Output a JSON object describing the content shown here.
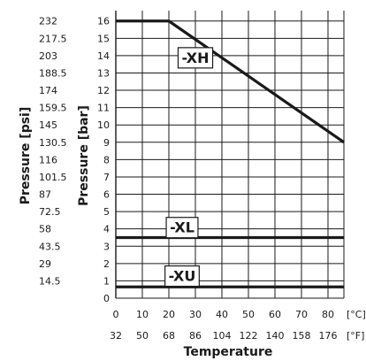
{
  "chart_data": {
    "type": "line",
    "xlabel": "Temperature",
    "ylabel_left": "Pressure [psi]",
    "ylabel_right": "Pressure [bar]",
    "x_unit_c": "[°C]",
    "x_unit_f": "[°F]",
    "xlim": [
      0,
      86
    ],
    "ylim": [
      0,
      16.6
    ],
    "x_ticks_c": [
      "0",
      "10",
      "20",
      "30",
      "40",
      "50",
      "60",
      "70",
      "80"
    ],
    "x_ticks_f": [
      "32",
      "50",
      "68",
      "86",
      "104",
      "122",
      "140",
      "158",
      "176"
    ],
    "y_ticks_bar": [
      "0",
      "1",
      "2",
      "3",
      "4",
      "5",
      "6",
      "7",
      "8",
      "9",
      "10",
      "11",
      "12",
      "13",
      "14",
      "15",
      "16"
    ],
    "y_ticks_psi": [
      {
        "bar": 1,
        "label": "14.5"
      },
      {
        "bar": 2,
        "label": "29"
      },
      {
        "bar": 3,
        "label": "43.5"
      },
      {
        "bar": 4,
        "label": "58"
      },
      {
        "bar": 5,
        "label": "72.5"
      },
      {
        "bar": 6,
        "label": "87"
      },
      {
        "bar": 7,
        "label": "101.5"
      },
      {
        "bar": 8,
        "label": "116"
      },
      {
        "bar": 9,
        "label": "130.5"
      },
      {
        "bar": 10,
        "label": "145"
      },
      {
        "bar": 11,
        "label": "159.5"
      },
      {
        "bar": 12,
        "label": "174"
      },
      {
        "bar": 13,
        "label": "188.5"
      },
      {
        "bar": 14,
        "label": "203"
      },
      {
        "bar": 15,
        "label": "217.5"
      },
      {
        "bar": 16,
        "label": "232"
      }
    ],
    "grid": true,
    "series": [
      {
        "name": "-XH",
        "x": [
          0,
          20,
          86
        ],
        "y": [
          16,
          16,
          9
        ],
        "label_at": [
          30,
          13.9
        ]
      },
      {
        "name": "-XL",
        "x": [
          0,
          86
        ],
        "y": [
          3.5,
          3.5
        ],
        "label_at": [
          25,
          4.1
        ]
      },
      {
        "name": "-XU",
        "x": [
          0,
          86
        ],
        "y": [
          0.65,
          0.65
        ],
        "label_at": [
          25,
          1.3
        ]
      }
    ],
    "colors": {
      "line": "#1a1a1a",
      "grid": "#1a1a1a",
      "text": "#1a1a1a"
    }
  }
}
